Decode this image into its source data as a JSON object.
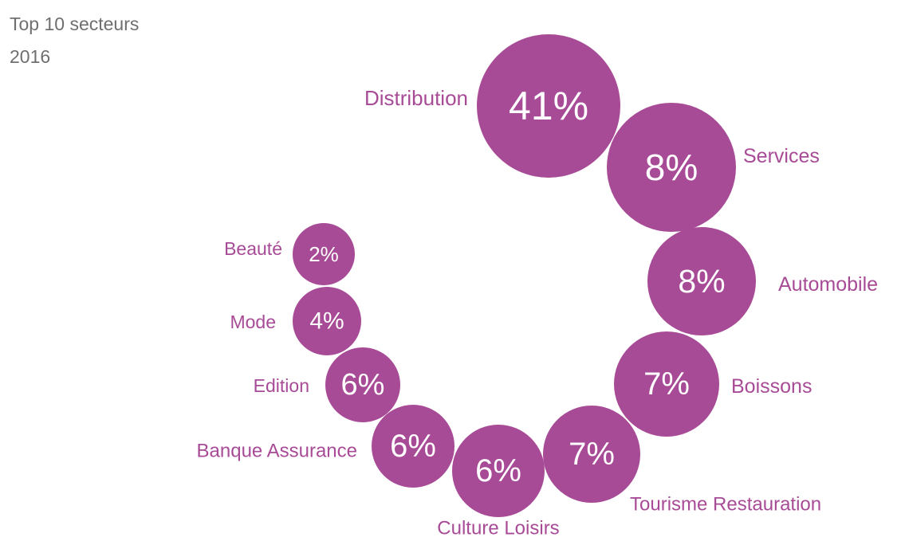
{
  "header": {
    "title": "Top 10 secteurs",
    "year": "2016"
  },
  "colors": {
    "bubble": "#a84b96",
    "label": "#a84b96",
    "header": "#6f6f6f"
  },
  "chart_data": {
    "type": "bubble",
    "title": "Top 10 secteurs",
    "subtitle": "2016",
    "unit": "%",
    "series": [
      {
        "name": "Distribution",
        "value": 41,
        "display": "41%"
      },
      {
        "name": "Services",
        "value": 8,
        "display": "8%"
      },
      {
        "name": "Automobile",
        "value": 8,
        "display": "8%"
      },
      {
        "name": "Boissons",
        "value": 7,
        "display": "7%"
      },
      {
        "name": "Tourisme Restauration",
        "value": 7,
        "display": "7%"
      },
      {
        "name": "Culture Loisirs",
        "value": 6,
        "display": "6%"
      },
      {
        "name": "Banque Assurance",
        "value": 6,
        "display": "6%"
      },
      {
        "name": "Edition",
        "value": 6,
        "display": "6%"
      },
      {
        "name": "Mode",
        "value": 4,
        "display": "4%"
      },
      {
        "name": "Beauté",
        "value": 2,
        "display": "2%"
      }
    ]
  }
}
